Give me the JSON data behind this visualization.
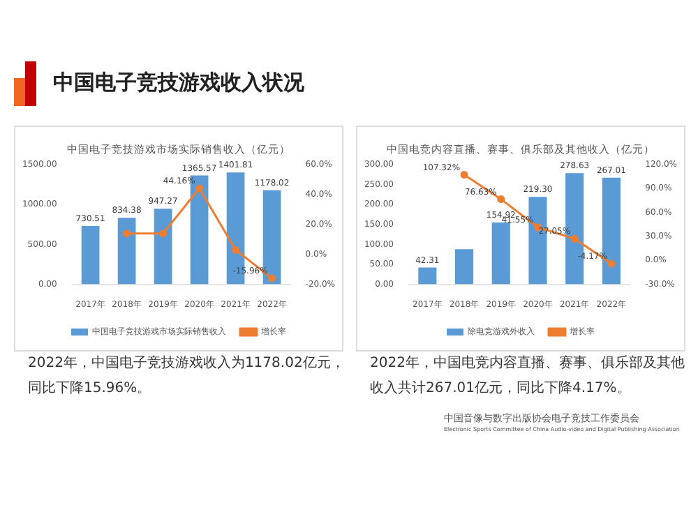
{
  "chart_data": [
    {
      "type": "other",
      "title": "中国电子竞技游戏收入状况",
      "annotations": [
        "中国音像与数字出版协会电子竞技工作委员会",
        "Electronic Sports Committee of China Audio-video and Digital Publishing Association"
      ]
    },
    {
      "type": "bar",
      "title": "中国电子竞技游戏市场实际销售收入（亿元）",
      "categories": [
        "2017年",
        "2018年",
        "2019年",
        "2020年",
        "2021年",
        "2022年"
      ],
      "series": [
        {
          "name": "中国电子竞技游戏市场实际销售收入",
          "color": "#5b9bd5",
          "values": [
            730.51,
            834.38,
            947.27,
            1365.57,
            1401.81,
            1178.02
          ],
          "value_labels": [
            "730.51",
            "834.38",
            "947.27",
            "1365.57",
            "1401.81",
            "1178.02"
          ]
        },
        {
          "name": "增长率",
          "type": "line",
          "axis": "y2",
          "color": "#ed7d31",
          "values": [
            null,
            14,
            14,
            44.16,
            3,
            -15.96
          ],
          "value_labels": [
            null,
            null,
            null,
            "44.16%",
            null,
            "-15.96%"
          ]
        }
      ],
      "ylim": [
        0,
        1500
      ],
      "yticks": [
        {
          "value": 0,
          "label": "0.00"
        },
        {
          "value": 500,
          "label": "500.00"
        },
        {
          "value": 1000,
          "label": "1000.00"
        },
        {
          "value": 1500,
          "label": "1500.00"
        }
      ],
      "y2lim": [
        -20,
        60
      ],
      "y2ticks": [
        {
          "value": -20,
          "label": "-20.0%"
        },
        {
          "value": 0,
          "label": "0.0%"
        },
        {
          "value": 20,
          "label": "20.0%"
        },
        {
          "value": 40,
          "label": "40.0%"
        },
        {
          "value": 60,
          "label": "60.0%"
        }
      ],
      "legend": "bottom",
      "marker": "circle",
      "annotations": [
        "2022年，中国电子竞技游戏收入为1178.02亿元，同比下降15.96%。"
      ]
    },
    {
      "type": "bar",
      "title": "中国电竞内容直播、赛事、俱乐部及其他收入（亿元）",
      "categories": [
        "2017年",
        "2018年",
        "2019年",
        "2020年",
        "2021年",
        "2022年"
      ],
      "series": [
        {
          "name": "除电竞游戏外收入",
          "color": "#5b9bd5",
          "values": [
            42.31,
            88,
            154.92,
            219.3,
            278.63,
            267.01
          ],
          "value_labels": [
            "42.31",
            null,
            "154.92",
            "219.30",
            "278.63",
            "267.01"
          ]
        },
        {
          "name": "增长率",
          "type": "line",
          "axis": "y2",
          "color": "#ed7d31",
          "values": [
            null,
            107.32,
            76.63,
            41.55,
            27.05,
            -4.17
          ],
          "value_labels": [
            null,
            "107.32%",
            "76.63%",
            "41.55%",
            "27.05%",
            "-4.17%"
          ]
        }
      ],
      "ylim": [
        0,
        300
      ],
      "yticks": [
        {
          "value": 0,
          "label": "0.00"
        },
        {
          "value": 50,
          "label": "50.00"
        },
        {
          "value": 100,
          "label": "100.00"
        },
        {
          "value": 150,
          "label": "150.00"
        },
        {
          "value": 200,
          "label": "200.00"
        },
        {
          "value": 250,
          "label": "250.00"
        },
        {
          "value": 300,
          "label": "300.00"
        }
      ],
      "y2lim": [
        -30,
        120
      ],
      "y2ticks": [
        {
          "value": -30,
          "label": "-30.0%"
        },
        {
          "value": 0,
          "label": "0.0%"
        },
        {
          "value": 30,
          "label": "30.0%"
        },
        {
          "value": 60,
          "label": "60.0%"
        },
        {
          "value": 90,
          "label": "90.0%"
        },
        {
          "value": 120,
          "label": "120.0%"
        }
      ],
      "legend": "bottom",
      "marker": "circle",
      "annotations": [
        "2022年，中国电竞内容直播、赛事、俱乐部及其他收入共计267.01亿元，同比下降4.17%。"
      ]
    }
  ]
}
